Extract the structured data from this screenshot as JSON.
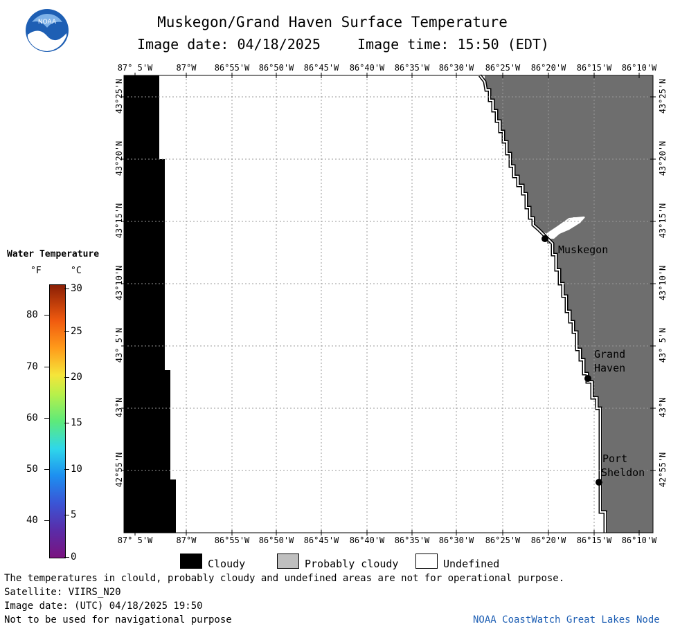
{
  "header": {
    "title": "Muskegon/Grand Haven Surface Temperature",
    "date_text": "Image date: 04/18/2025",
    "time_text": "Image time: 15:50 (EDT)",
    "logo_text": "NOAA"
  },
  "map": {
    "lon_ticks": [
      "87° 5'W",
      "87°W",
      "86°55'W",
      "86°50'W",
      "86°45'W",
      "86°40'W",
      "86°35'W",
      "86°30'W",
      "86°25'W",
      "86°20'W",
      "86°15'W",
      "86°10'W"
    ],
    "lat_ticks": [
      "43°25'N",
      "43°20'N",
      "43°15'N",
      "43°10'N",
      "43° 5'N",
      "43°N",
      "42°55'N"
    ],
    "places": [
      {
        "name_lines": [
          "Muskegon"
        ]
      },
      {
        "name_lines": [
          "Grand",
          "Haven"
        ]
      },
      {
        "name_lines": [
          "Port",
          "Sheldon"
        ]
      }
    ],
    "colors": {
      "cloudy": "#000000",
      "land": "#6e6e6e",
      "undefined": "#ffffff",
      "grid": "#999999"
    }
  },
  "scale": {
    "title": "Water Temperature",
    "unit_f": "°F",
    "unit_c": "°C",
    "f_labels": [
      "80",
      "70",
      "60",
      "50",
      "40"
    ],
    "c_labels": [
      "30",
      "25",
      "20",
      "15",
      "10",
      "5",
      "0"
    ]
  },
  "legend": {
    "cloudy": "Cloudy",
    "probably_cloudy": "Probably cloudy",
    "undefined": "Undefined",
    "probably_cloudy_color": "#bfbfbf"
  },
  "footer": {
    "note": "The temperatures in clould, probably cloudy and undefined areas are not for operational purpose.",
    "satellite": "Satellite: VIIRS_N20",
    "utc_date": "Image date: (UTC) 04/18/2025  19:50",
    "nav_warning": "Not to be used for navigational purpose",
    "credit": "NOAA CoastWatch Great Lakes Node"
  }
}
